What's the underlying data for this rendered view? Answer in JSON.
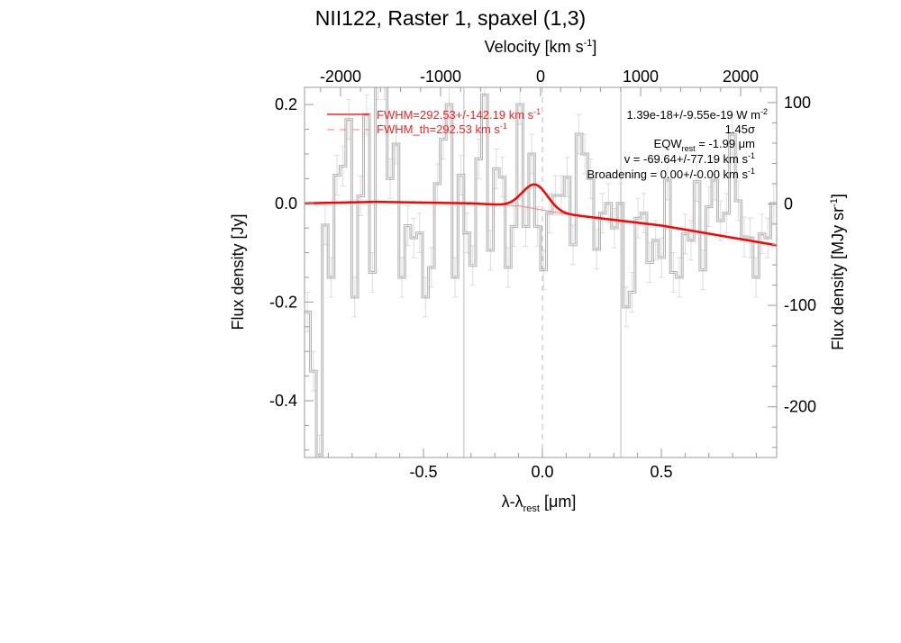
{
  "chart_data": {
    "type": "line",
    "title": "NII122, Raster 1, spaxel (1,3)",
    "xlabel": "λ-λ",
    "xlabel_sub": "rest",
    "xlabel_unit": " [μm]",
    "ylabel": "Flux density [Jy]",
    "top_xlabel": "Velocity [km s",
    "top_xlabel_sup": "-1",
    "top_xlabel_end": "]",
    "right_ylabel": "Flux density [MJy sr",
    "right_ylabel_sup": "-1",
    "right_ylabel_end": "]",
    "xlim": [
      -1.0,
      0.985
    ],
    "ylim": [
      -0.515,
      0.235
    ],
    "top_xlim": [
      -2360,
      2360
    ],
    "right_ylim": [
      -250,
      115
    ],
    "x_ticks": [
      -0.5,
      0.0,
      0.5
    ],
    "x_tick_labels": [
      "-0.5",
      "0.0",
      "0.5"
    ],
    "y_ticks": [
      0.2,
      0.0,
      -0.2,
      -0.4
    ],
    "y_tick_labels": [
      "0.2",
      "0.0",
      "-0.2",
      "-0.4"
    ],
    "top_ticks": [
      -2000,
      -1000,
      0,
      1000,
      2000
    ],
    "top_tick_labels": [
      "-2000",
      "-1000",
      "0",
      "1000",
      "2000"
    ],
    "right_ticks": [
      100,
      0,
      -100,
      -200
    ],
    "right_tick_labels": [
      "100",
      "0",
      "-100",
      "-200"
    ],
    "spectrum": {
      "name": "observed flux (histogram)",
      "color": "#555555",
      "x_start": -1.0,
      "x_end": 0.985,
      "values": [
        -0.22,
        -0.34,
        -0.51,
        -0.044,
        -0.15,
        0.057,
        0.075,
        0.17,
        -0.19,
        0.015,
        0.18,
        -0.14,
        0.25,
        0.25,
        0.05,
        0.12,
        -0.15,
        -0.045,
        -0.07,
        -0.06,
        -0.19,
        -0.13,
        0.04,
        0.13,
        0.2,
        -0.15,
        0.057,
        -0.06,
        -0.126,
        0.09,
        0.22,
        -0.095,
        0.07,
        0.053,
        -0.13,
        -0.047,
        0.2,
        -0.047,
        0.1,
        -0.047,
        -0.135,
        -0.02,
        0.016,
        0.016,
        0.053,
        -0.084,
        0.14,
        0.1,
        0.05,
        -0.093,
        -0.02,
        0.0,
        -0.05,
        0.0,
        -0.21,
        -0.18,
        -0.03,
        -0.02,
        -0.12,
        -0.075,
        -0.11,
        0.047,
        -0.14,
        -0.15,
        -0.062,
        -0.075,
        0.044,
        -0.135,
        -0.007,
        0.047,
        -0.035,
        -0.02,
        0.14,
        0.005,
        -0.068,
        -0.07,
        -0.15,
        -0.062,
        -0.07,
        0.0
      ],
      "error": 0.04
    },
    "continuum": {
      "name": "continuum",
      "color": "#ff3030",
      "points": [
        [
          -1.0,
          0.0
        ],
        [
          -0.7,
          0.003
        ],
        [
          -0.3,
          0.0
        ],
        [
          -0.1,
          -0.005
        ],
        [
          0.1,
          -0.022
        ],
        [
          0.5,
          -0.045
        ],
        [
          0.985,
          -0.085
        ]
      ]
    },
    "fit": {
      "name": "gaussian fit",
      "color": "#ff0000",
      "center": -0.03,
      "amplitude": 0.049,
      "sigma": 0.052
    },
    "vlines": {
      "solid": [
        -0.33,
        0.33
      ],
      "dashed": [
        0.0
      ]
    },
    "legend": {
      "fwhm": "FWHM=292.53+/-142.19 km s",
      "fwhm_sup": "-1",
      "fwhm_th": "FWHM_th=292.53 km s",
      "fwhm_th_sup": "-1",
      "flux": "1.39e-18+/-9.55e-19 W m",
      "flux_sup": "-2",
      "sigma": "1.45σ",
      "eqw": "EQW",
      "eqw_sub": "rest",
      "eqw_val": " = -1.99 μm",
      "v": "v = -69.64+/-77.19 km s",
      "v_sup": "-1",
      "broadening": "Broadening = 0.00+/-0.00 km s",
      "broadening_sup": "-1"
    }
  }
}
